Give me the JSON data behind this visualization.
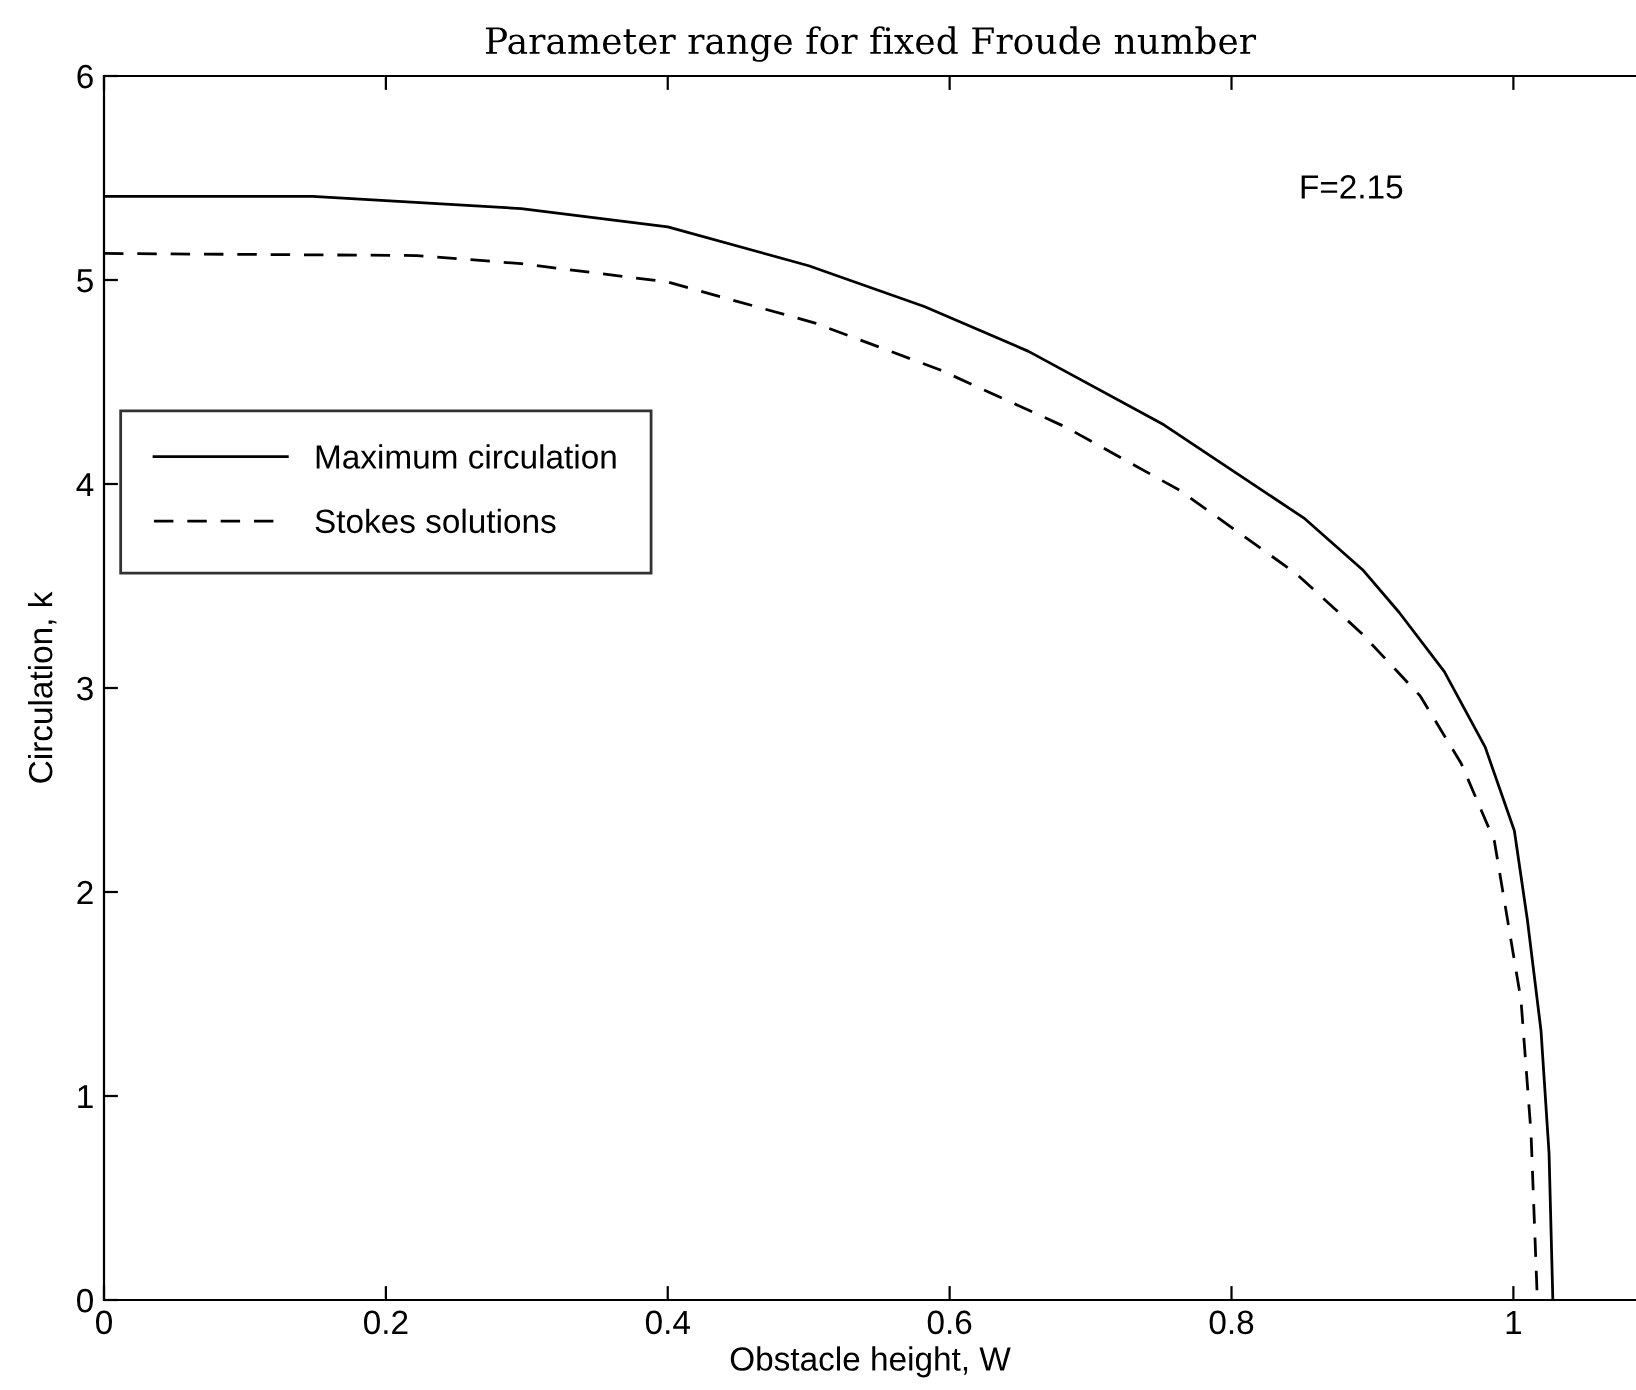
{
  "chart_data": {
    "type": "line",
    "title": "Parameter range for fixed Froude number",
    "xlabel": "Obstacle height, W",
    "ylabel": "Circulation, k",
    "annotations": [
      "F=2.15"
    ],
    "xlim": [
      0,
      1.087
    ],
    "ylim": [
      0,
      6
    ],
    "xticks": [
      0,
      0.2,
      0.4,
      0.6,
      0.8,
      1
    ],
    "yticks": [
      0,
      1,
      2,
      3,
      4,
      5,
      6
    ],
    "grid": false,
    "legend": "upper left",
    "marker": "none",
    "series": [
      {
        "name": "Maximum circulation",
        "color": "#000000",
        "line_style": "solid",
        "x": [
          0,
          0.148,
          0.296,
          0.4,
          0.5,
          0.582,
          0.656,
          0.752,
          0.852,
          0.893,
          0.919,
          0.951,
          0.98,
          1.0007,
          1.01,
          1.0196,
          1.0253,
          1.028
        ],
        "values": [
          5.41,
          5.41,
          5.35,
          5.26,
          5.07,
          4.87,
          4.65,
          4.29,
          3.83,
          3.58,
          3.37,
          3.08,
          2.71,
          2.3,
          1.86,
          1.32,
          0.72,
          0
        ]
      },
      {
        "name": "Stokes solutions",
        "color": "#000000",
        "line_style": "dashed",
        "x": [
          0,
          0.222,
          0.296,
          0.4,
          0.504,
          0.593,
          0.682,
          0.763,
          0.846,
          0.892,
          0.934,
          0.963,
          0.9865,
          1.0054,
          1.0125,
          1.017
        ],
        "values": [
          5.13,
          5.12,
          5.08,
          4.99,
          4.79,
          4.56,
          4.28,
          3.97,
          3.56,
          3.27,
          2.96,
          2.63,
          2.25,
          1.47,
          0.82,
          0
        ]
      }
    ]
  }
}
